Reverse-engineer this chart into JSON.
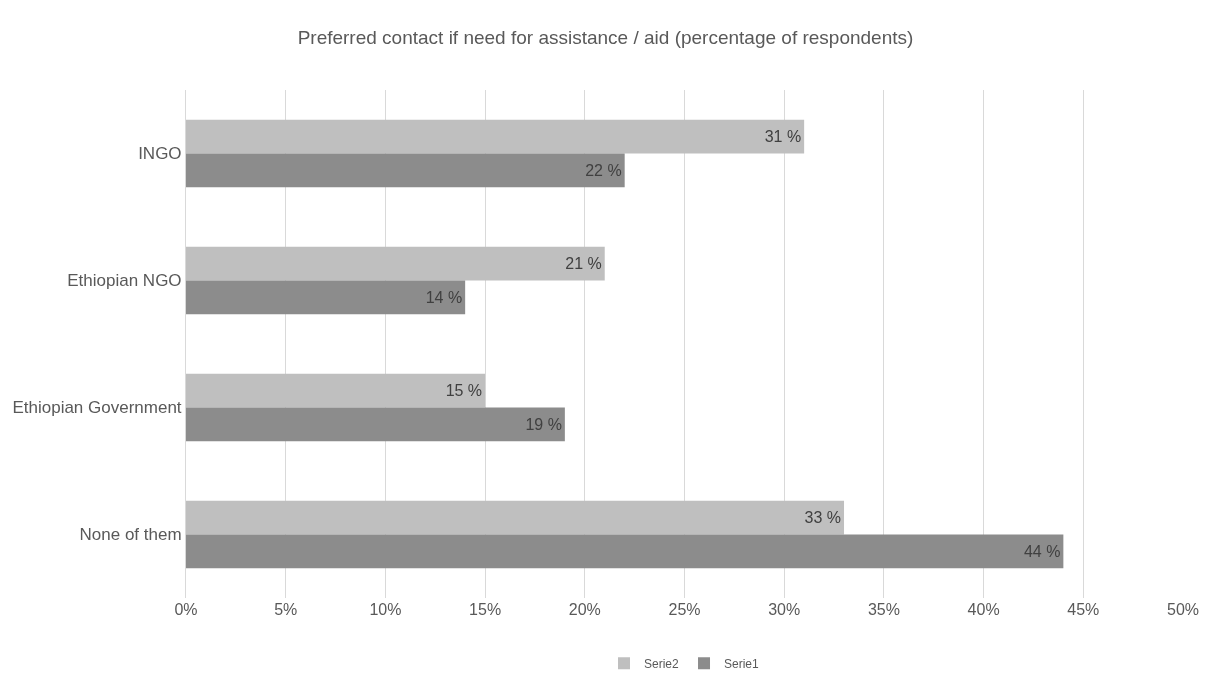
{
  "chart_data": {
    "type": "bar",
    "orientation": "horizontal",
    "title": "Preferred contact if need for assistance / aid (percentage of respondents)",
    "categories": [
      "INGO",
      "Ethiopian NGO",
      "Ethiopian Government",
      "None of them"
    ],
    "series": [
      {
        "name": "Serie2",
        "color": "#bfbfbf",
        "values": [
          31,
          21,
          15,
          33
        ],
        "value_labels": [
          "31 %",
          "21 %",
          "15 %",
          "33 %"
        ]
      },
      {
        "name": "Serie1",
        "color": "#8c8c8c",
        "values": [
          22,
          14,
          19,
          44
        ],
        "value_labels": [
          "22 %",
          "14 %",
          "19 %",
          "44 %"
        ]
      }
    ],
    "xlim": [
      0,
      50
    ],
    "xticks": [
      {
        "value": 0,
        "label": "0%"
      },
      {
        "value": 5,
        "label": "5%"
      },
      {
        "value": 10,
        "label": "10%"
      },
      {
        "value": 15,
        "label": "15%"
      },
      {
        "value": 20,
        "label": "20%"
      },
      {
        "value": 25,
        "label": "25%"
      },
      {
        "value": 30,
        "label": "30%"
      },
      {
        "value": 35,
        "label": "35%"
      },
      {
        "value": 40,
        "label": "40%"
      },
      {
        "value": 45,
        "label": "45%"
      },
      {
        "value": 50,
        "label": "50%"
      }
    ],
    "grid": "x",
    "legend": "bottom"
  }
}
